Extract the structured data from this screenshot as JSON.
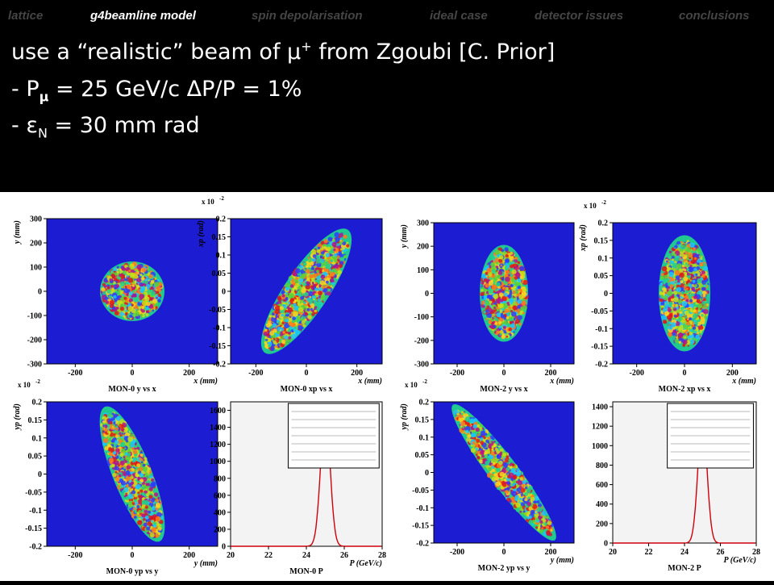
{
  "nav": {
    "items": [
      {
        "label": "lattice",
        "active": false
      },
      {
        "label": "g4beamline model",
        "active": true
      },
      {
        "label": "spin depolarisation",
        "active": false
      },
      {
        "label": "ideal case",
        "active": false
      },
      {
        "label": "detector issues",
        "active": false
      },
      {
        "label": "conclusions",
        "active": false
      }
    ]
  },
  "header": {
    "line1_pre": "use a “realistic” beam of ",
    "line1_symbol": "μ",
    "line1_sup": "+",
    "line1_post": " from Zgoubi [C. Prior]",
    "line2_pre": "- P",
    "line2_sub": "μ",
    "line2_mid": " = 25 GeV/c  ",
    "line2_delta": "Δ",
    "line2_post": "P/P = 1%",
    "line3_pre": "- ",
    "line3_eps": "ε",
    "line3_sub": "N",
    "line3_post": " = 30 mm rad"
  },
  "chart_data": [
    {
      "type": "heatmap",
      "title": "MON-0 y vs x",
      "xlabel": "x (mm)",
      "ylabel": "y (mm)",
      "xlim": [
        -300,
        300
      ],
      "ylim": [
        -300,
        300
      ],
      "xticks": [
        "-200",
        "0",
        "200"
      ],
      "yticks": [
        "300",
        "200",
        "100",
        "0",
        "-100",
        "-200",
        "-300"
      ],
      "shape": "upright ellipse, ~40% wide, ~40% tall",
      "colormap": "rainbow on blue background"
    },
    {
      "type": "heatmap",
      "title": "MON-0 xp vs x",
      "xlabel": "x (mm)",
      "ylabel": "xp (rad)",
      "yscale": "x 10^-2",
      "xlim": [
        -300,
        300
      ],
      "ylim": [
        -0.2,
        0.2
      ],
      "xticks": [
        "-200",
        "0",
        "200"
      ],
      "yticks": [
        "0.2",
        "0.15",
        "0.1",
        "0.05",
        "0",
        "-0.05",
        "-0.1",
        "-0.15",
        "-0.2"
      ],
      "shape": "ellipse tilted upward to the right",
      "colormap": "rainbow on blue background"
    },
    {
      "type": "heatmap",
      "title": "MON-0 yp vs y",
      "xlabel": "y (mm)",
      "ylabel": "yp (rad)",
      "yscale": "x 10^-2",
      "xlim": [
        -300,
        300
      ],
      "ylim": [
        -0.2,
        0.2
      ],
      "xticks": [
        "-200",
        "0",
        "200"
      ],
      "yticks": [
        "0.2",
        "0.15",
        "0.1",
        "0.05",
        "0",
        "-0.05",
        "-0.1",
        "-0.15",
        "-0.2"
      ],
      "shape": "ellipse tilted downward to the right",
      "colormap": "rainbow on blue background"
    },
    {
      "type": "histogram",
      "title": "MON-0 P",
      "xlabel": "P (GeV/c)",
      "xlim": [
        20,
        28
      ],
      "ylim": [
        0,
        1700
      ],
      "xticks": [
        "20",
        "22",
        "24",
        "26",
        "28"
      ],
      "yticks": [
        "1600",
        "1400",
        "1200",
        "1000",
        "800",
        "600",
        "400",
        "200",
        "0"
      ],
      "peak_center": 25.0,
      "peak_height": 1580,
      "peak_sigma": 0.25
    },
    {
      "type": "heatmap",
      "title": "MON-2 y vs x",
      "xlabel": "x (mm)",
      "ylabel": "y (mm)",
      "xlim": [
        -300,
        300
      ],
      "ylim": [
        -300,
        300
      ],
      "xticks": [
        "-200",
        "0",
        "200"
      ],
      "yticks": [
        "300",
        "200",
        "100",
        "0",
        "-100",
        "-200",
        "-300"
      ],
      "shape": "vertical ellipse, narrow and tall",
      "colormap": "rainbow on blue background"
    },
    {
      "type": "heatmap",
      "title": "MON-2 xp vs x",
      "xlabel": "x (mm)",
      "ylabel": "xp (rad)",
      "yscale": "x 10^-2",
      "xlim": [
        -300,
        300
      ],
      "ylim": [
        -0.2,
        0.2
      ],
      "xticks": [
        "-200",
        "0",
        "200"
      ],
      "yticks": [
        "0.2",
        "0.15",
        "0.1",
        "0.05",
        "0",
        "-0.05",
        "-0.1",
        "-0.15",
        "-0.2"
      ],
      "shape": "diamond-like upright ellipse",
      "colormap": "rainbow on blue background"
    },
    {
      "type": "heatmap",
      "title": "MON-2 yp vs y",
      "xlabel": "y (mm)",
      "ylabel": "yp (rad)",
      "yscale": "x 10^-2",
      "xlim": [
        -300,
        300
      ],
      "ylim": [
        -0.2,
        0.2
      ],
      "xticks": [
        "-200",
        "0",
        "200"
      ],
      "yticks": [
        "0.2",
        "0.15",
        "0.1",
        "0.05",
        "0",
        "-0.05",
        "-0.1",
        "-0.15",
        "-0.2"
      ],
      "shape": "long thin ellipse tilted downward to the right",
      "colormap": "rainbow on blue background"
    },
    {
      "type": "histogram",
      "title": "MON-2 P",
      "xlabel": "P (GeV/c)",
      "xlim": [
        20,
        28
      ],
      "ylim": [
        0,
        1450
      ],
      "xticks": [
        "20",
        "22",
        "24",
        "26",
        "28"
      ],
      "yticks": [
        "1400",
        "1200",
        "1000",
        "800",
        "600",
        "400",
        "200",
        "0"
      ],
      "peak_center": 25.0,
      "peak_height": 1300,
      "peak_sigma": 0.25
    }
  ],
  "colors": {
    "background": "#000000",
    "heat_bg": "#1c1cd2",
    "hist_fill": "#f3f3f3",
    "hist_line": "#d0000a",
    "nav_active": "#ffffff",
    "nav_inactive": "#454545"
  }
}
